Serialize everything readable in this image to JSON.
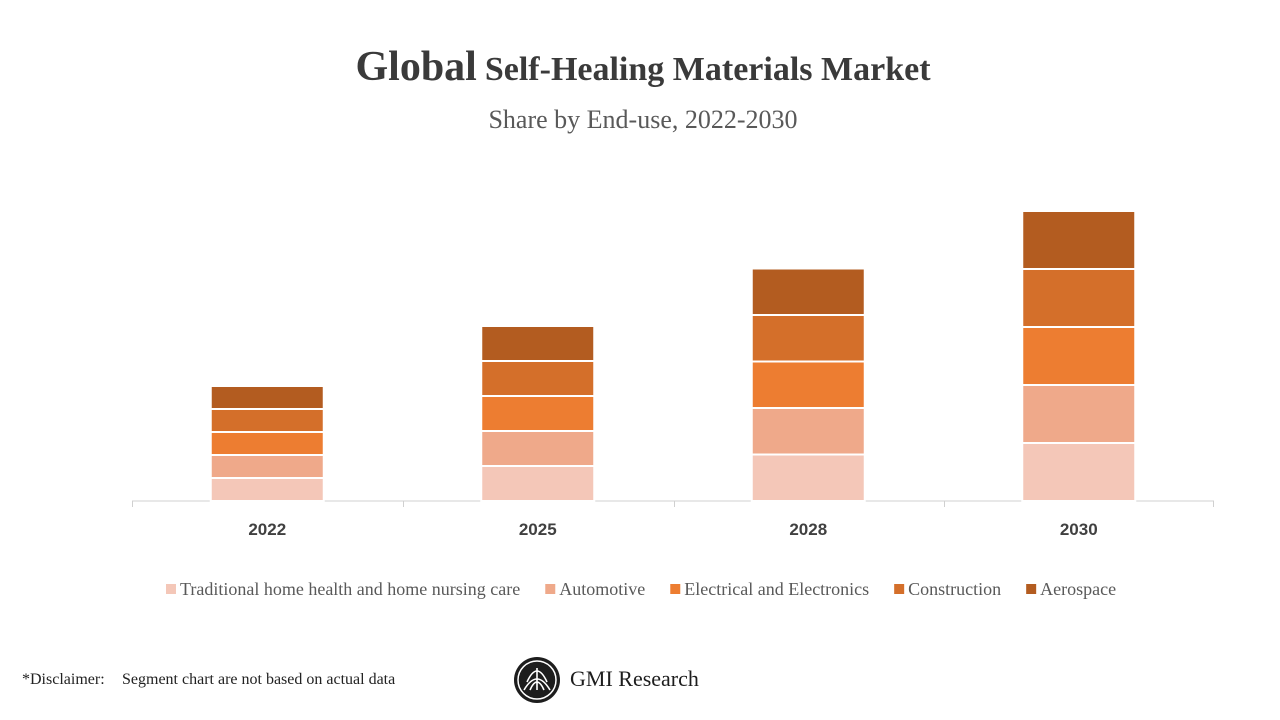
{
  "chart_data": {
    "type": "stacked_bar",
    "title_lead": "Global",
    "title": "Self-Healing Materials Market",
    "subtitle": "Share by End-use, 2022-2030",
    "categories": [
      "2022",
      "2025",
      "2028",
      "2030"
    ],
    "series": [
      {
        "name": "Traditional home health and home nursing care",
        "color": "#f4c7b8",
        "values": [
          23,
          35,
          46.5,
          58
        ]
      },
      {
        "name": "Automotive",
        "color": "#efa98a",
        "values": [
          23,
          35,
          46.5,
          58
        ]
      },
      {
        "name": "Electrical and Electronics",
        "color": "#ed7d31",
        "values": [
          23,
          35,
          46.5,
          58
        ]
      },
      {
        "name": "Construction",
        "color": "#d46f2a",
        "values": [
          23,
          35,
          46.5,
          58
        ]
      },
      {
        "name": "Aerospace",
        "color": "#b35c20",
        "values": [
          23,
          35,
          46.5,
          58
        ]
      }
    ],
    "ylim": [
      0,
      300
    ],
    "legend": "bottom"
  },
  "footer": {
    "disclaimer_label": "*Disclaimer:",
    "disclaimer_text": "Segment chart are not based on actual data",
    "brand": "GMI Research"
  }
}
